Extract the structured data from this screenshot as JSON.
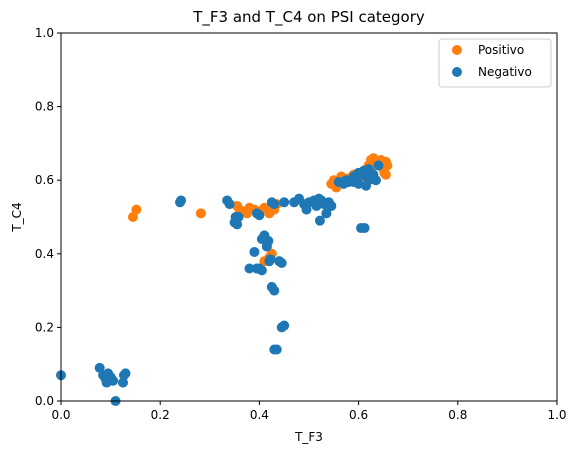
{
  "chart_data": {
    "type": "scatter",
    "title": "T_F3 and T_C4 on PSI category",
    "xlabel": "T_F3",
    "ylabel": "T_C4",
    "xlim": [
      0,
      1
    ],
    "ylim": [
      0,
      1
    ],
    "xticks": [
      "0.0",
      "0.2",
      "0.4",
      "0.6",
      "0.8",
      "1.0"
    ],
    "yticks": [
      "0.0",
      "0.2",
      "0.4",
      "0.6",
      "0.8",
      "1.0"
    ],
    "grid": false,
    "legend_position": "top-right",
    "series": [
      {
        "name": "Positivo",
        "color": "#ff7f0e",
        "points": [
          [
            0.145,
            0.5
          ],
          [
            0.152,
            0.52
          ],
          [
            0.282,
            0.51
          ],
          [
            0.355,
            0.53
          ],
          [
            0.36,
            0.52
          ],
          [
            0.37,
            0.515
          ],
          [
            0.375,
            0.51
          ],
          [
            0.39,
            0.52
          ],
          [
            0.4,
            0.515
          ],
          [
            0.41,
            0.525
          ],
          [
            0.415,
            0.52
          ],
          [
            0.42,
            0.51
          ],
          [
            0.425,
            0.53
          ],
          [
            0.43,
            0.52
          ],
          [
            0.435,
            0.535
          ],
          [
            0.38,
            0.525
          ],
          [
            0.415,
            0.42
          ],
          [
            0.42,
            0.39
          ],
          [
            0.41,
            0.38
          ],
          [
            0.425,
            0.4
          ],
          [
            0.545,
            0.59
          ],
          [
            0.55,
            0.6
          ],
          [
            0.555,
            0.58
          ],
          [
            0.56,
            0.595
          ],
          [
            0.565,
            0.61
          ],
          [
            0.57,
            0.6
          ],
          [
            0.58,
            0.605
          ],
          [
            0.59,
            0.615
          ],
          [
            0.6,
            0.62
          ],
          [
            0.605,
            0.61
          ],
          [
            0.61,
            0.625
          ],
          [
            0.615,
            0.63
          ],
          [
            0.62,
            0.64
          ],
          [
            0.625,
            0.655
          ],
          [
            0.63,
            0.64
          ],
          [
            0.635,
            0.65
          ],
          [
            0.64,
            0.645
          ],
          [
            0.645,
            0.655
          ],
          [
            0.65,
            0.63
          ],
          [
            0.652,
            0.62
          ],
          [
            0.655,
            0.65
          ],
          [
            0.658,
            0.64
          ],
          [
            0.655,
            0.615
          ],
          [
            0.63,
            0.66
          ],
          [
            0.615,
            0.62
          ]
        ]
      },
      {
        "name": "Negativo",
        "color": "#1f77b4",
        "points": [
          [
            0.0,
            0.07
          ],
          [
            0.078,
            0.09
          ],
          [
            0.085,
            0.07
          ],
          [
            0.09,
            0.06
          ],
          [
            0.092,
            0.05
          ],
          [
            0.095,
            0.075
          ],
          [
            0.1,
            0.065
          ],
          [
            0.102,
            0.06
          ],
          [
            0.105,
            0.055
          ],
          [
            0.11,
            0.0
          ],
          [
            0.125,
            0.05
          ],
          [
            0.127,
            0.07
          ],
          [
            0.13,
            0.075
          ],
          [
            0.24,
            0.54
          ],
          [
            0.242,
            0.545
          ],
          [
            0.335,
            0.545
          ],
          [
            0.34,
            0.535
          ],
          [
            0.35,
            0.485
          ],
          [
            0.352,
            0.5
          ],
          [
            0.355,
            0.48
          ],
          [
            0.358,
            0.5
          ],
          [
            0.38,
            0.36
          ],
          [
            0.39,
            0.405
          ],
          [
            0.395,
            0.36
          ],
          [
            0.4,
            0.36
          ],
          [
            0.405,
            0.355
          ],
          [
            0.395,
            0.51
          ],
          [
            0.4,
            0.505
          ],
          [
            0.405,
            0.44
          ],
          [
            0.41,
            0.45
          ],
          [
            0.415,
            0.42
          ],
          [
            0.418,
            0.435
          ],
          [
            0.42,
            0.38
          ],
          [
            0.422,
            0.385
          ],
          [
            0.425,
            0.31
          ],
          [
            0.43,
            0.3
          ],
          [
            0.43,
            0.14
          ],
          [
            0.435,
            0.14
          ],
          [
            0.44,
            0.38
          ],
          [
            0.445,
            0.375
          ],
          [
            0.445,
            0.2
          ],
          [
            0.45,
            0.205
          ],
          [
            0.45,
            0.54
          ],
          [
            0.425,
            0.54
          ],
          [
            0.43,
            0.535
          ],
          [
            0.47,
            0.54
          ],
          [
            0.48,
            0.55
          ],
          [
            0.49,
            0.535
          ],
          [
            0.495,
            0.52
          ],
          [
            0.5,
            0.54
          ],
          [
            0.51,
            0.545
          ],
          [
            0.515,
            0.53
          ],
          [
            0.52,
            0.55
          ],
          [
            0.525,
            0.545
          ],
          [
            0.53,
            0.535
          ],
          [
            0.522,
            0.49
          ],
          [
            0.535,
            0.51
          ],
          [
            0.54,
            0.54
          ],
          [
            0.545,
            0.53
          ],
          [
            0.56,
            0.595
          ],
          [
            0.57,
            0.59
          ],
          [
            0.575,
            0.6
          ],
          [
            0.58,
            0.595
          ],
          [
            0.585,
            0.6
          ],
          [
            0.59,
            0.61
          ],
          [
            0.595,
            0.605
          ],
          [
            0.6,
            0.62
          ],
          [
            0.605,
            0.615
          ],
          [
            0.61,
            0.625
          ],
          [
            0.615,
            0.61
          ],
          [
            0.62,
            0.6
          ],
          [
            0.625,
            0.62
          ],
          [
            0.63,
            0.615
          ],
          [
            0.635,
            0.6
          ],
          [
            0.64,
            0.64
          ],
          [
            0.605,
            0.47
          ],
          [
            0.612,
            0.47
          ],
          [
            0.59,
            0.595
          ],
          [
            0.6,
            0.59
          ],
          [
            0.615,
            0.585
          ],
          [
            0.62,
            0.63
          ]
        ]
      }
    ]
  }
}
